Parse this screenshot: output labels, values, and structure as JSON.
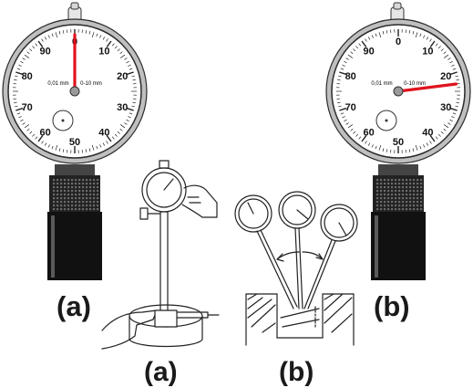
{
  "dials": [
    {
      "numbers": [
        "0",
        "10",
        "20",
        "30",
        "40",
        "50",
        "60",
        "70",
        "80",
        "90"
      ],
      "resolution_label": "0,01 mm",
      "range_label": "0-10 mm",
      "pointer_reading": 0,
      "pointer_color": "#e0141e"
    },
    {
      "numbers": [
        "0",
        "10",
        "20",
        "30",
        "40",
        "50",
        "60",
        "70",
        "80",
        "90"
      ],
      "resolution_label": "0,01 mm",
      "range_label": "0-10 mm",
      "pointer_reading": 23,
      "pointer_color": "#e0141e"
    }
  ],
  "captions": {
    "left_top": "(a)",
    "right_top": "(b)",
    "bottom_a": "(a)",
    "bottom_b": "(b)"
  }
}
